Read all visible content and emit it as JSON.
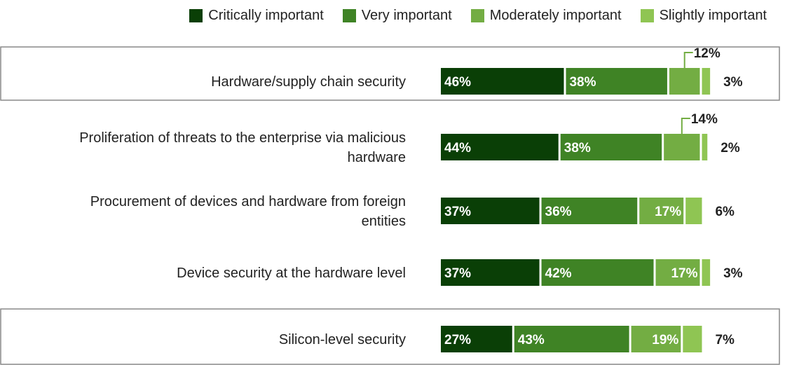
{
  "chart_data": {
    "type": "bar",
    "stacked": true,
    "orientation": "horizontal",
    "legend_position": "top-right",
    "categories": [
      "Hardware/supply chain security",
      "Proliferation of threats to the enterprise via malicious hardware",
      "Procurement of devices and hardware from foreign entities",
      "Device security at the hardware level",
      "Silicon-level security"
    ],
    "category_lines": [
      [
        "Hardware/supply chain security"
      ],
      [
        "Proliferation of threats to the enterprise via malicious",
        "hardware"
      ],
      [
        "Procurement of devices and hardware from foreign",
        "entities"
      ],
      [
        "Device security at the hardware level"
      ],
      [
        "Silicon-level security"
      ]
    ],
    "highlighted": [
      0,
      4
    ],
    "series": [
      {
        "name": "Critically important",
        "color": "#0a3f06",
        "values": [
          46,
          44,
          37,
          37,
          27
        ]
      },
      {
        "name": "Very important",
        "color": "#3f8325",
        "values": [
          38,
          38,
          36,
          42,
          43
        ]
      },
      {
        "name": "Moderately important",
        "color": "#73ad43",
        "values": [
          12,
          14,
          17,
          17,
          19
        ]
      },
      {
        "name": "Slightly important",
        "color": "#8fc553",
        "values": [
          3,
          2,
          6,
          3,
          7
        ]
      }
    ],
    "value_suffix": "%"
  }
}
